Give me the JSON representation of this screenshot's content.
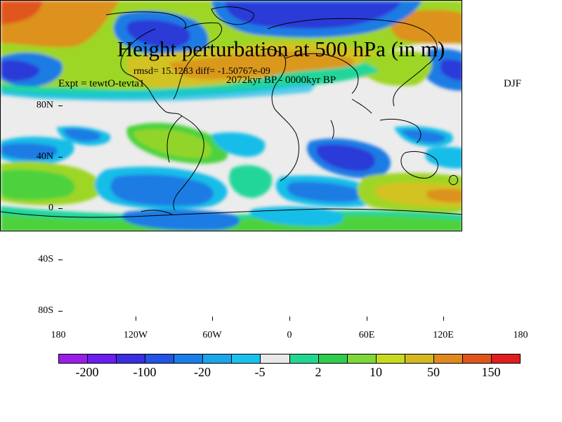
{
  "header": {
    "title": "Height perturbation at 500 hPa (in m)",
    "stats": "rmsd= 15.1283 diff= -1.50767e-09",
    "period": "2072kyr BP - 0000kyr BP",
    "expt": "Expt = tewtO-tevta1",
    "season": "DJF"
  },
  "axes": {
    "lat_labels": [
      "80N",
      "40N",
      "0",
      "40S",
      "80S"
    ],
    "lon_labels": [
      "180",
      "120W",
      "60W",
      "0",
      "60E",
      "120E",
      "180"
    ]
  },
  "colorbar": {
    "labels": [
      "-200",
      "-100",
      "-20",
      "-5",
      "2",
      "10",
      "50",
      "150"
    ],
    "colors": [
      "#9a1ee8",
      "#6a1ef0",
      "#3a2ee0",
      "#2255e6",
      "#1a7ee8",
      "#1aa6ea",
      "#18c2ee",
      "#e8e8e8",
      "#22d890",
      "#30cc4c",
      "#7ed838",
      "#c8da1e",
      "#d6b820",
      "#e08a1e",
      "#e0561a",
      "#e01e1e"
    ]
  },
  "colors": {
    "background": "#ececec",
    "deep_blue": "#2a3ad8",
    "blue": "#1f7be4",
    "light_blue": "#19bde8",
    "teal": "#22d69a",
    "green": "#4ed23c",
    "yellow_green": "#9ed628",
    "yellow": "#d2c222",
    "orange": "#dc921e",
    "coast": "#000000"
  }
}
